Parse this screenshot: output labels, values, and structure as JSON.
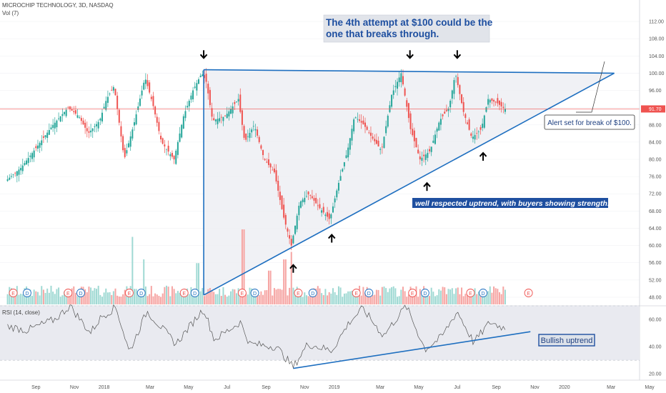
{
  "header": {
    "symbol": "MICROCHIP TECHNOLOGY, 3D, NASDAQ",
    "volume": "Vol (7)"
  },
  "rsi_header": "RSI (14, close)",
  "colors": {
    "up": "#26a69a",
    "down": "#ef5350",
    "trend": "#1e6fc0",
    "price_line": "#ef5350"
  },
  "chart_data": {
    "type": "candlestick",
    "x_ticks": [
      "Sep",
      "Nov",
      "2018",
      "Mar",
      "May",
      "Jul",
      "Sep",
      "Nov",
      "2019",
      "Mar",
      "May",
      "Jul",
      "Sep",
      "Nov",
      "2020",
      "Mar",
      "May"
    ],
    "price_axis": {
      "ticks": [
        "112.00",
        "108.00",
        "104.00",
        "100.00",
        "96.00",
        "92.00",
        "88.00",
        "84.00",
        "80.00",
        "76.00",
        "72.00",
        "68.00",
        "64.00",
        "60.00",
        "56.00",
        "52.00",
        "48.00"
      ],
      "range": [
        46,
        114
      ],
      "current": "91.70"
    },
    "rsi_axis": {
      "ticks": [
        "60.00",
        "40.00",
        "20.00"
      ],
      "range": [
        18,
        70
      ],
      "upper_band": 70,
      "lower_band": 30
    },
    "price_path": [
      [
        "2017-08-01",
        75
      ],
      [
        "2017-08-25",
        78
      ],
      [
        "2017-09-20",
        83
      ],
      [
        "2017-10-15",
        88
      ],
      [
        "2017-11-08",
        92
      ],
      [
        "2017-11-25",
        90
      ],
      [
        "2017-12-10",
        86
      ],
      [
        "2017-12-28",
        89
      ],
      [
        "2018-01-08",
        94
      ],
      [
        "2018-01-20",
        97
      ],
      [
        "2018-02-05",
        80
      ],
      [
        "2018-02-20",
        88
      ],
      [
        "2018-03-10",
        99
      ],
      [
        "2018-03-22",
        93
      ],
      [
        "2018-04-05",
        84
      ],
      [
        "2018-04-25",
        80
      ],
      [
        "2018-05-10",
        90
      ],
      [
        "2018-05-25",
        96
      ],
      [
        "2018-06-08",
        100
      ],
      [
        "2018-06-15",
        98
      ],
      [
        "2018-06-25",
        89
      ],
      [
        "2018-07-15",
        90
      ],
      [
        "2018-08-05",
        94
      ],
      [
        "2018-08-15",
        84
      ],
      [
        "2018-08-30",
        88
      ],
      [
        "2018-09-15",
        80
      ],
      [
        "2018-10-01",
        77
      ],
      [
        "2018-10-15",
        67
      ],
      [
        "2018-10-28",
        60
      ],
      [
        "2018-11-10",
        70
      ],
      [
        "2018-11-25",
        72
      ],
      [
        "2018-12-10",
        69
      ],
      [
        "2018-12-28",
        66
      ],
      [
        "2019-01-10",
        74
      ],
      [
        "2019-01-25",
        82
      ],
      [
        "2019-02-05",
        90
      ],
      [
        "2019-02-20",
        88
      ],
      [
        "2019-03-05",
        85
      ],
      [
        "2019-03-20",
        82
      ],
      [
        "2019-04-05",
        95
      ],
      [
        "2019-04-20",
        100
      ],
      [
        "2019-05-05",
        87
      ],
      [
        "2019-05-20",
        80
      ],
      [
        "2019-06-05",
        82
      ],
      [
        "2019-06-20",
        89
      ],
      [
        "2019-07-05",
        92
      ],
      [
        "2019-07-15",
        100
      ],
      [
        "2019-07-28",
        91
      ],
      [
        "2019-08-10",
        85
      ],
      [
        "2019-08-25",
        87
      ],
      [
        "2019-09-05",
        94
      ],
      [
        "2019-09-20",
        93
      ],
      [
        "2019-10-01",
        91.7
      ]
    ],
    "volume_spikes": [
      [
        "2018-02-15",
        0.9
      ],
      [
        "2018-03-05",
        0.6
      ],
      [
        "2018-05-30",
        0.55
      ],
      [
        "2018-08-10",
        1.0
      ],
      [
        "2018-10-15",
        0.6
      ],
      [
        "2018-10-25",
        0.7
      ],
      [
        "2018-09-20",
        0.45
      ]
    ],
    "rsi_path": [
      [
        "2017-08-01",
        55
      ],
      [
        "2017-09-01",
        52
      ],
      [
        "2017-10-15",
        60
      ],
      [
        "2017-11-08",
        70
      ],
      [
        "2017-12-10",
        50
      ],
      [
        "2017-12-28",
        62
      ],
      [
        "2018-01-20",
        69
      ],
      [
        "2018-02-10",
        36
      ],
      [
        "2018-03-10",
        66
      ],
      [
        "2018-04-25",
        42
      ],
      [
        "2018-06-08",
        68
      ],
      [
        "2018-06-25",
        45
      ],
      [
        "2018-08-05",
        58
      ],
      [
        "2018-08-20",
        42
      ],
      [
        "2018-10-01",
        40
      ],
      [
        "2018-10-28",
        25
      ],
      [
        "2018-11-20",
        42
      ],
      [
        "2018-12-28",
        37
      ],
      [
        "2019-01-25",
        58
      ],
      [
        "2019-02-15",
        68
      ],
      [
        "2019-03-20",
        48
      ],
      [
        "2019-04-25",
        70
      ],
      [
        "2019-05-25",
        38
      ],
      [
        "2019-06-20",
        47
      ],
      [
        "2019-07-15",
        66
      ],
      [
        "2019-08-10",
        43
      ],
      [
        "2019-09-05",
        58
      ],
      [
        "2019-10-01",
        53
      ]
    ],
    "triangle": {
      "top": [
        [
          "2018-06-08",
          100.8
        ],
        [
          "2020-03-20",
          100
        ]
      ],
      "bottom": [
        [
          "2018-06-08",
          48.5
        ],
        [
          "2020-03-20",
          100
        ]
      ],
      "left": [
        [
          "2018-06-08",
          100.8
        ],
        [
          "2018-06-08",
          48.5
        ]
      ]
    },
    "rsi_trendline": [
      [
        "2018-10-28",
        24
      ],
      [
        "2019-11-08",
        51
      ]
    ],
    "earnings_markers": [
      [
        "2017-08-10",
        "E"
      ],
      [
        "2017-09-01",
        "D"
      ],
      [
        "2017-11-05",
        "E"
      ],
      [
        "2017-11-25",
        "D"
      ],
      [
        "2018-02-10",
        "E"
      ],
      [
        "2018-03-01",
        "D"
      ],
      [
        "2018-05-08",
        "E"
      ],
      [
        "2018-05-25",
        "D"
      ],
      [
        "2018-08-08",
        "E"
      ],
      [
        "2018-08-28",
        "D"
      ],
      [
        "2018-11-05",
        "E"
      ],
      [
        "2018-11-28",
        "D"
      ],
      [
        "2019-02-05",
        "E"
      ],
      [
        "2019-02-25",
        "D"
      ],
      [
        "2019-05-05",
        "E"
      ],
      [
        "2019-05-25",
        "D"
      ],
      [
        "2019-08-05",
        "E"
      ],
      [
        "2019-08-25",
        "D"
      ],
      [
        "2019-11-05",
        "E"
      ]
    ],
    "arrows_down": [
      [
        "2018-06-08",
        104
      ],
      [
        "2019-05-01",
        104
      ],
      [
        "2019-07-15",
        104
      ]
    ],
    "arrows_up": [
      [
        "2018-10-28",
        55
      ],
      [
        "2018-12-28",
        62
      ],
      [
        "2019-05-28",
        74
      ],
      [
        "2019-08-25",
        81
      ]
    ]
  },
  "annotations": {
    "headline": [
      "The 4th attempt at $100 could be the",
      "one that breaks through."
    ],
    "alert": "Alert set for break of $100.",
    "uptrend": "well respected uptrend, with buyers showing strength.",
    "rsi_label": "Bullish uptrend"
  }
}
